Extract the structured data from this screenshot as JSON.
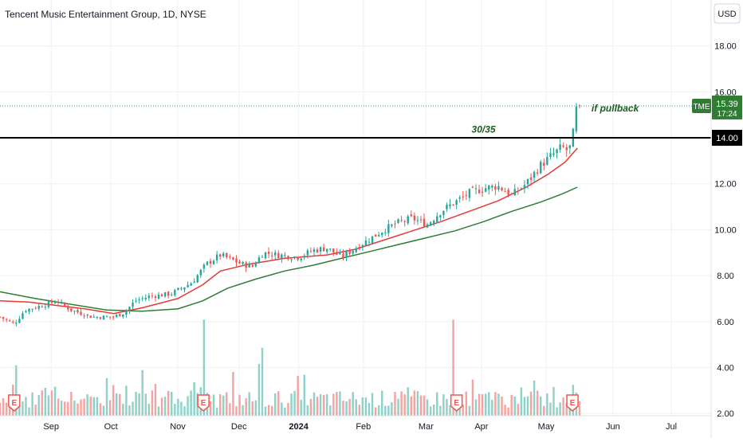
{
  "header": {
    "title": "Tencent Music Entertainment Group, 1D, NYSE",
    "currency": "USD"
  },
  "colors": {
    "up": "#26a69a",
    "down": "#ef5350",
    "vol_up": "#8fd1c9",
    "vol_down": "#f4a3a0",
    "ma_fast": "#e53935",
    "ma_slow": "#2e7d32",
    "annotation": "#1b5e20",
    "level_line": "#000000",
    "grid": "#eef0f3",
    "axis_text": "#131722",
    "tme_badge": "#2e7d32"
  },
  "chart_data": {
    "type": "candlestick",
    "title": "Tencent Music Entertainment Group, 1D, NYSE",
    "ylim": [
      1.9,
      20.0
    ],
    "y_ticks": [
      "2.00",
      "4.00",
      "6.00",
      "8.00",
      "10.00",
      "12.00",
      "14.00",
      "16.00",
      "18.00"
    ],
    "x_ticks": [
      "Sep",
      "Oct",
      "Nov",
      "Dec",
      "2024",
      "Feb",
      "Mar",
      "Apr",
      "May",
      "Jun",
      "Jul"
    ],
    "x_tick_pos": [
      0.072,
      0.156,
      0.25,
      0.336,
      0.42,
      0.511,
      0.599,
      0.677,
      0.768,
      0.862,
      0.944
    ],
    "last_price": "15.39",
    "countdown": "17:24",
    "symbol_badge": "TME",
    "level_price": "14.00",
    "level_value": 14.0,
    "annotations": [
      {
        "text": "30/35",
        "x": 0.68,
        "y": 14.22
      },
      {
        "text": "if pullback",
        "x": 0.865,
        "y": 15.15
      }
    ],
    "earnings_markers": [
      {
        "label": "E",
        "x": 0.02
      },
      {
        "label": "E",
        "x": 0.286
      },
      {
        "label": "E",
        "x": 0.642
      },
      {
        "label": "E",
        "x": 0.805
      }
    ],
    "anchors": [
      [
        0.0,
        6.2
      ],
      [
        0.02,
        5.9
      ],
      [
        0.035,
        6.5
      ],
      [
        0.06,
        6.7
      ],
      [
        0.08,
        6.9
      ],
      [
        0.1,
        6.5
      ],
      [
        0.13,
        6.2
      ],
      [
        0.16,
        6.2
      ],
      [
        0.175,
        6.4
      ],
      [
        0.19,
        6.9
      ],
      [
        0.21,
        7.1
      ],
      [
        0.24,
        7.2
      ],
      [
        0.27,
        7.7
      ],
      [
        0.29,
        8.5
      ],
      [
        0.31,
        8.9
      ],
      [
        0.34,
        8.5
      ],
      [
        0.355,
        8.4
      ],
      [
        0.37,
        9.0
      ],
      [
        0.39,
        8.9
      ],
      [
        0.42,
        8.8
      ],
      [
        0.44,
        9.1
      ],
      [
        0.46,
        9.2
      ],
      [
        0.48,
        8.8
      ],
      [
        0.51,
        9.4
      ],
      [
        0.54,
        10.0
      ],
      [
        0.56,
        10.3
      ],
      [
        0.58,
        10.5
      ],
      [
        0.6,
        10.2
      ],
      [
        0.62,
        10.8
      ],
      [
        0.64,
        11.2
      ],
      [
        0.66,
        11.6
      ],
      [
        0.68,
        11.8
      ],
      [
        0.7,
        11.9
      ],
      [
        0.72,
        11.5
      ],
      [
        0.74,
        12.0
      ],
      [
        0.76,
        12.8
      ],
      [
        0.775,
        13.2
      ],
      [
        0.79,
        13.6
      ],
      [
        0.8,
        13.4
      ],
      [
        0.806,
        14.2
      ],
      [
        0.81,
        15.2
      ],
      [
        0.815,
        15.39
      ]
    ],
    "ma_fast_pts": [
      [
        0.0,
        6.9
      ],
      [
        0.04,
        6.85
      ],
      [
        0.08,
        6.7
      ],
      [
        0.12,
        6.55
      ],
      [
        0.16,
        6.35
      ],
      [
        0.2,
        6.6
      ],
      [
        0.25,
        7.0
      ],
      [
        0.285,
        7.6
      ],
      [
        0.31,
        8.2
      ],
      [
        0.35,
        8.5
      ],
      [
        0.4,
        8.75
      ],
      [
        0.46,
        8.9
      ],
      [
        0.5,
        9.15
      ],
      [
        0.54,
        9.55
      ],
      [
        0.58,
        9.95
      ],
      [
        0.62,
        10.35
      ],
      [
        0.66,
        10.8
      ],
      [
        0.7,
        11.25
      ],
      [
        0.74,
        11.85
      ],
      [
        0.77,
        12.4
      ],
      [
        0.795,
        12.95
      ],
      [
        0.812,
        13.55
      ]
    ],
    "ma_slow_pts": [
      [
        0.0,
        7.3
      ],
      [
        0.05,
        7.0
      ],
      [
        0.1,
        6.75
      ],
      [
        0.15,
        6.5
      ],
      [
        0.2,
        6.45
      ],
      [
        0.25,
        6.55
      ],
      [
        0.285,
        6.9
      ],
      [
        0.32,
        7.45
      ],
      [
        0.36,
        7.85
      ],
      [
        0.4,
        8.2
      ],
      [
        0.44,
        8.45
      ],
      [
        0.48,
        8.75
      ],
      [
        0.52,
        9.05
      ],
      [
        0.56,
        9.35
      ],
      [
        0.6,
        9.65
      ],
      [
        0.64,
        9.95
      ],
      [
        0.68,
        10.35
      ],
      [
        0.72,
        10.8
      ],
      [
        0.76,
        11.2
      ],
      [
        0.79,
        11.55
      ],
      [
        0.812,
        11.85
      ]
    ]
  }
}
